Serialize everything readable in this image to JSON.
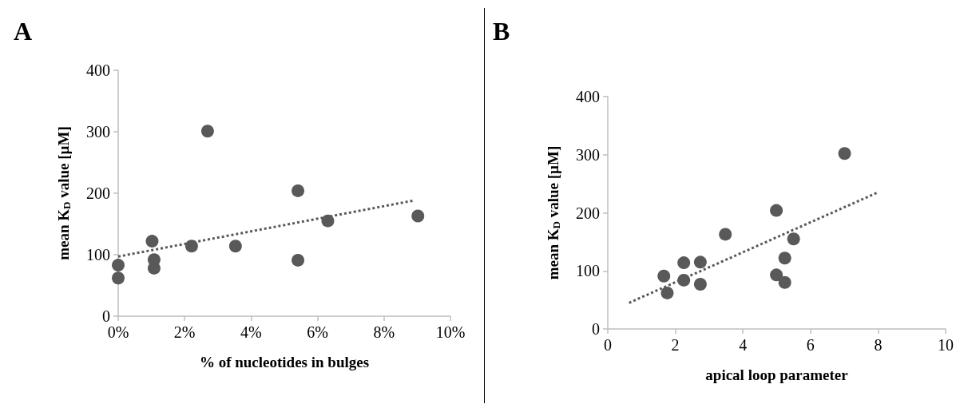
{
  "chart_data": [
    {
      "type": "scatter",
      "title": "A",
      "xlabel": "% of nucleotides in bulges",
      "ylabel": "mean K$_{D}$ value [µM]",
      "xlim": [
        0,
        10
      ],
      "xticks": [
        {
          "value": 0,
          "label": "0%"
        },
        {
          "value": 2,
          "label": "2%"
        },
        {
          "value": 4,
          "label": "4%"
        },
        {
          "value": 6,
          "label": "6%"
        },
        {
          "value": 8,
          "label": "8%"
        },
        {
          "value": 10,
          "label": "10%"
        }
      ],
      "ylim": [
        0,
        400
      ],
      "yticks": [
        0,
        100,
        200,
        300,
        400
      ],
      "grid": false,
      "marker": "circle",
      "series": [
        {
          "type": "scatter",
          "color": "#595959",
          "x": [
            0,
            0,
            1.02,
            1.08,
            1.08,
            2.21,
            2.69,
            3.53,
            5.41,
            5.41,
            6.31,
            9.02
          ],
          "values": [
            83,
            62,
            122,
            92,
            78,
            114,
            301,
            114,
            204,
            91,
            155,
            163
          ]
        },
        {
          "type": "line",
          "color": "#595959",
          "line_style": "dotted",
          "marker": "none",
          "x": [
            0,
            8.88
          ],
          "values": [
            97,
            188
          ]
        }
      ]
    },
    {
      "type": "scatter",
      "title": "B",
      "xlabel": "apical loop parameter",
      "ylabel": "mean K$_{D}$ value [µM]",
      "xlim": [
        0,
        10
      ],
      "xticks": [
        0,
        2,
        4,
        6,
        8,
        10
      ],
      "ylim": [
        0,
        400
      ],
      "yticks": [
        0,
        100,
        200,
        300,
        400
      ],
      "grid": false,
      "marker": "circle",
      "series": [
        {
          "type": "scatter",
          "color": "#595959",
          "x": [
            1.66,
            1.76,
            2.25,
            2.25,
            2.74,
            2.74,
            3.48,
            4.99,
            4.99,
            5.24,
            5.24,
            5.5,
            7.01
          ],
          "values": [
            91,
            62,
            114,
            84,
            115,
            77,
            163,
            204,
            93,
            122,
            80,
            155,
            302
          ]
        },
        {
          "type": "line",
          "color": "#595959",
          "line_style": "dotted",
          "marker": "none",
          "x": [
            0.63,
            7.99
          ],
          "values": [
            45,
            235
          ]
        }
      ]
    }
  ]
}
